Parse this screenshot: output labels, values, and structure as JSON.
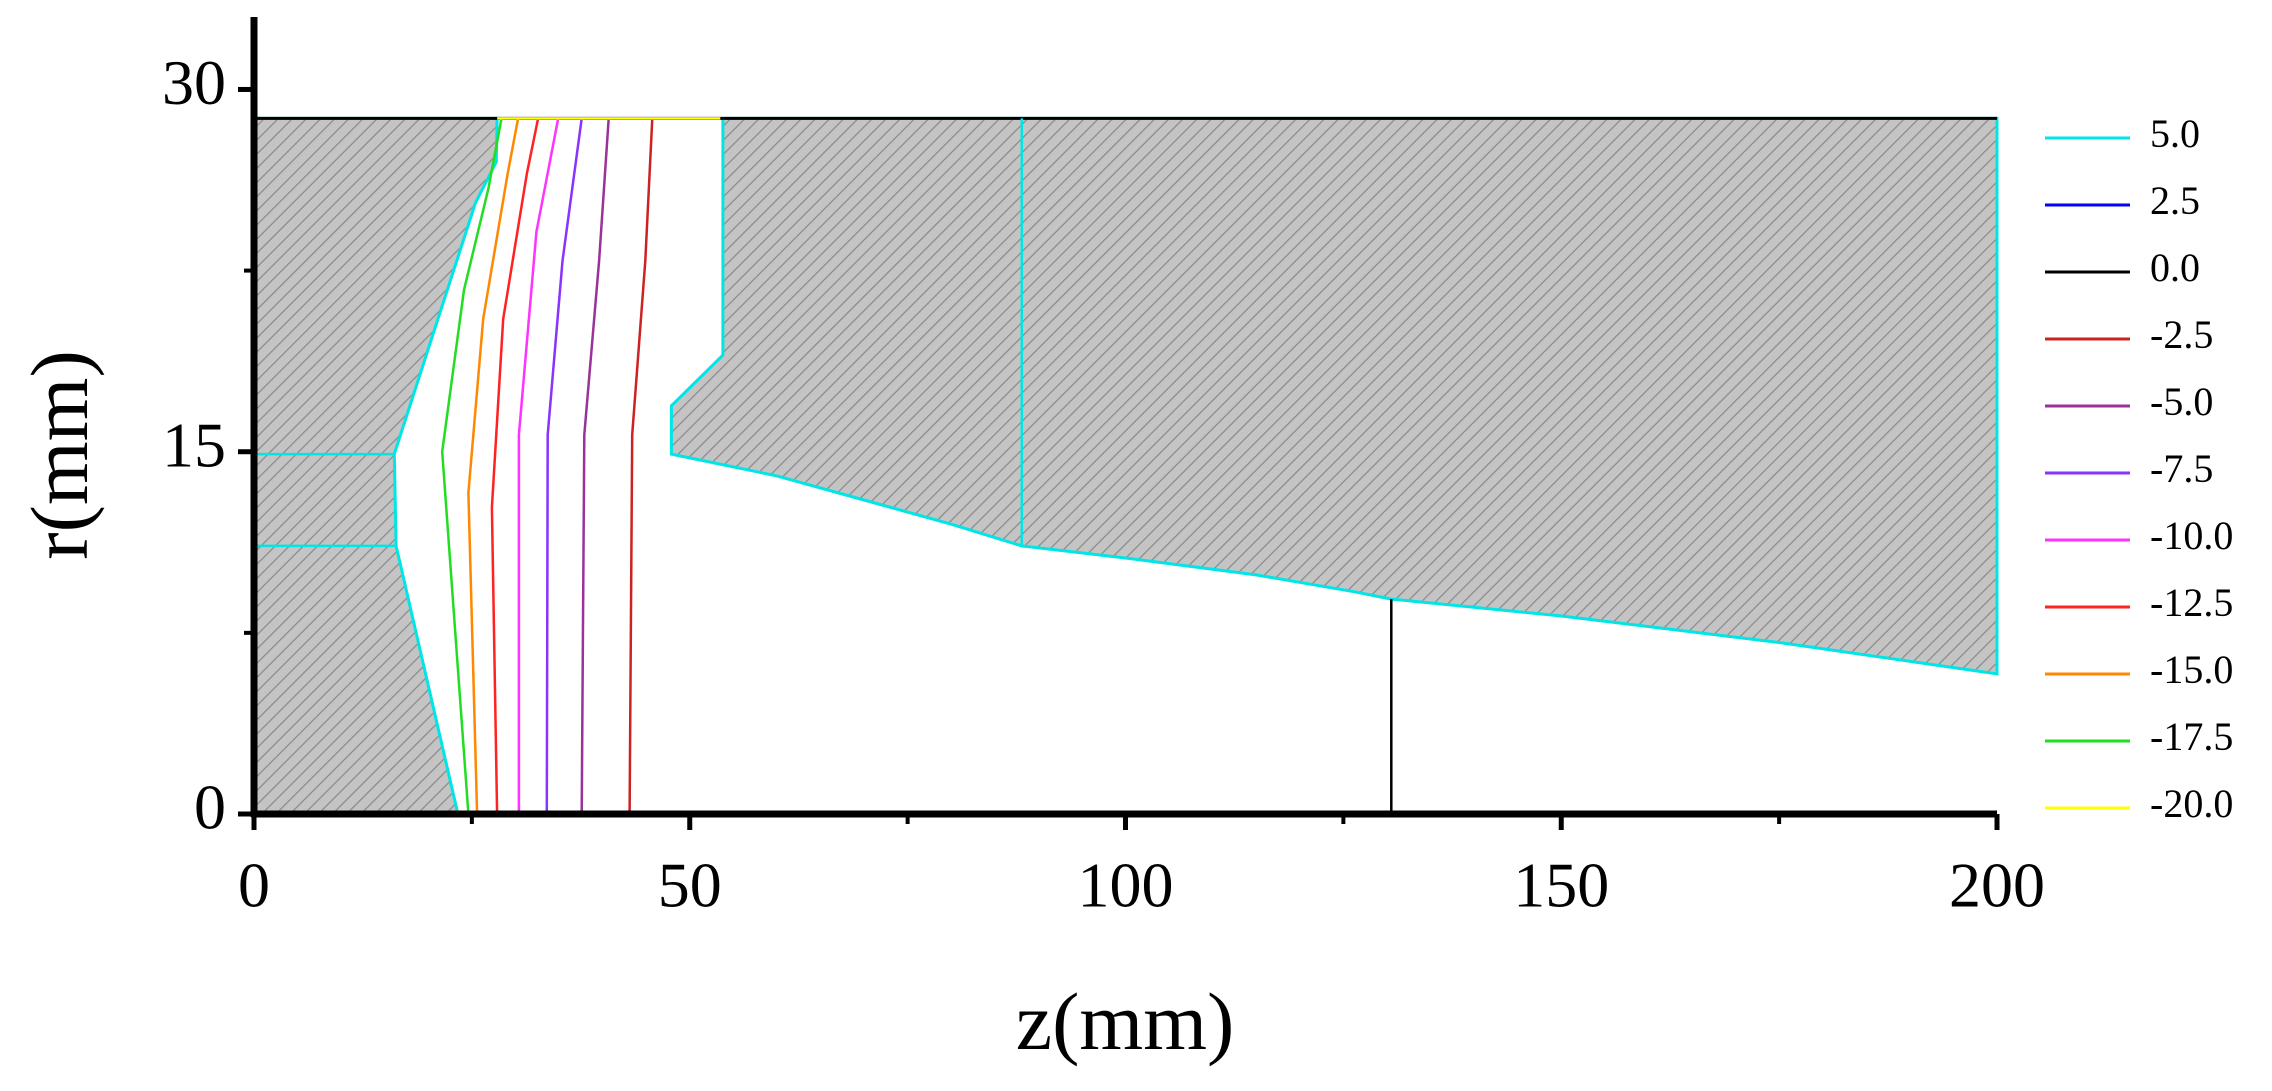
{
  "chart_data": {
    "type": "contour",
    "x_label": "z(mm)",
    "y_label": "r(mm)",
    "xlim": [
      0,
      200
    ],
    "ylim": [
      0,
      33
    ],
    "xticks": [
      0,
      50,
      100,
      150,
      200
    ],
    "yticks": [
      0,
      15,
      30
    ],
    "xminor": [
      25,
      75,
      125,
      175
    ],
    "yminor": [
      7.5,
      22.5
    ],
    "regions": [
      {
        "x": [
          0,
          23.4,
          16.3,
          16.1,
          25.4,
          27.8,
          27.9,
          0
        ],
        "y": [
          0,
          0,
          11.1,
          14.9,
          25.3,
          27,
          28.8,
          28.8
        ]
      },
      {
        "x": [
          53.8,
          53.8,
          47.9,
          47.9,
          60,
          70,
          80,
          88.1,
          100,
          115,
          126.3,
          130.5,
          150,
          175,
          200,
          200
        ],
        "y": [
          28.8,
          19,
          16.9,
          14.9,
          14,
          13,
          12,
          11.1,
          10.6,
          9.9,
          9.2,
          8.9,
          8.2,
          7.1,
          5.8,
          28.8
        ]
      }
    ],
    "top_boundary": {
      "x": [
        0,
        200
      ],
      "y": [
        28.8,
        28.8
      ]
    },
    "series": [
      {
        "name": "5.0",
        "color": "#00e5e5",
        "x": [
          0,
          16.1,
          null,
          0,
          16.3,
          null,
          88.1,
          88.1
        ],
        "y": [
          14.9,
          14.9,
          null,
          11.1,
          11.1,
          null,
          11.1,
          28.8
        ]
      },
      {
        "name": "2.5",
        "color": "#0000ff"
      },
      {
        "name": "0.0",
        "color": "#000000",
        "x": [
          130.5,
          130.5
        ],
        "y": [
          0,
          8.9
        ]
      },
      {
        "name": "-2.5",
        "color": "#cc2222",
        "x": [
          43.1,
          43.4,
          44.9,
          45.7
        ],
        "y": [
          0,
          15.7,
          22.9,
          28.8
        ]
      },
      {
        "name": "-5.0",
        "color": "#993399",
        "x": [
          37.6,
          37.9,
          39.6,
          40.7
        ],
        "y": [
          0,
          15.7,
          22.9,
          28.8
        ]
      },
      {
        "name": "-7.5",
        "color": "#8833ff",
        "x": [
          33.6,
          33.7,
          35.4,
          37.6
        ],
        "y": [
          0,
          15.7,
          22.9,
          28.8
        ]
      },
      {
        "name": "-10.0",
        "color": "#ff33ff",
        "x": [
          30.4,
          30.4,
          32.4,
          34.9
        ],
        "y": [
          0,
          15.7,
          24.1,
          28.8
        ]
      },
      {
        "name": "-12.5",
        "color": "#ff2222",
        "x": [
          27.9,
          27.3,
          28.6,
          31.3,
          32.6
        ],
        "y": [
          0,
          12.7,
          20.5,
          26.5,
          28.8
        ]
      },
      {
        "name": "-15.0",
        "color": "#ff8800",
        "x": [
          25.6,
          24.6,
          26.3,
          29.1,
          30.3
        ],
        "y": [
          0,
          13.3,
          20.5,
          26.5,
          28.8
        ]
      },
      {
        "name": "-17.5",
        "color": "#22dd22",
        "x": [
          24.6,
          21.6,
          24.1,
          26.9,
          28.4
        ],
        "y": [
          0,
          15,
          21.7,
          25.9,
          28.8
        ]
      },
      {
        "name": "-20.0",
        "color": "#ffff00",
        "x": [
          27.9,
          53.5
        ],
        "y": [
          28.8,
          28.8
        ]
      }
    ]
  }
}
